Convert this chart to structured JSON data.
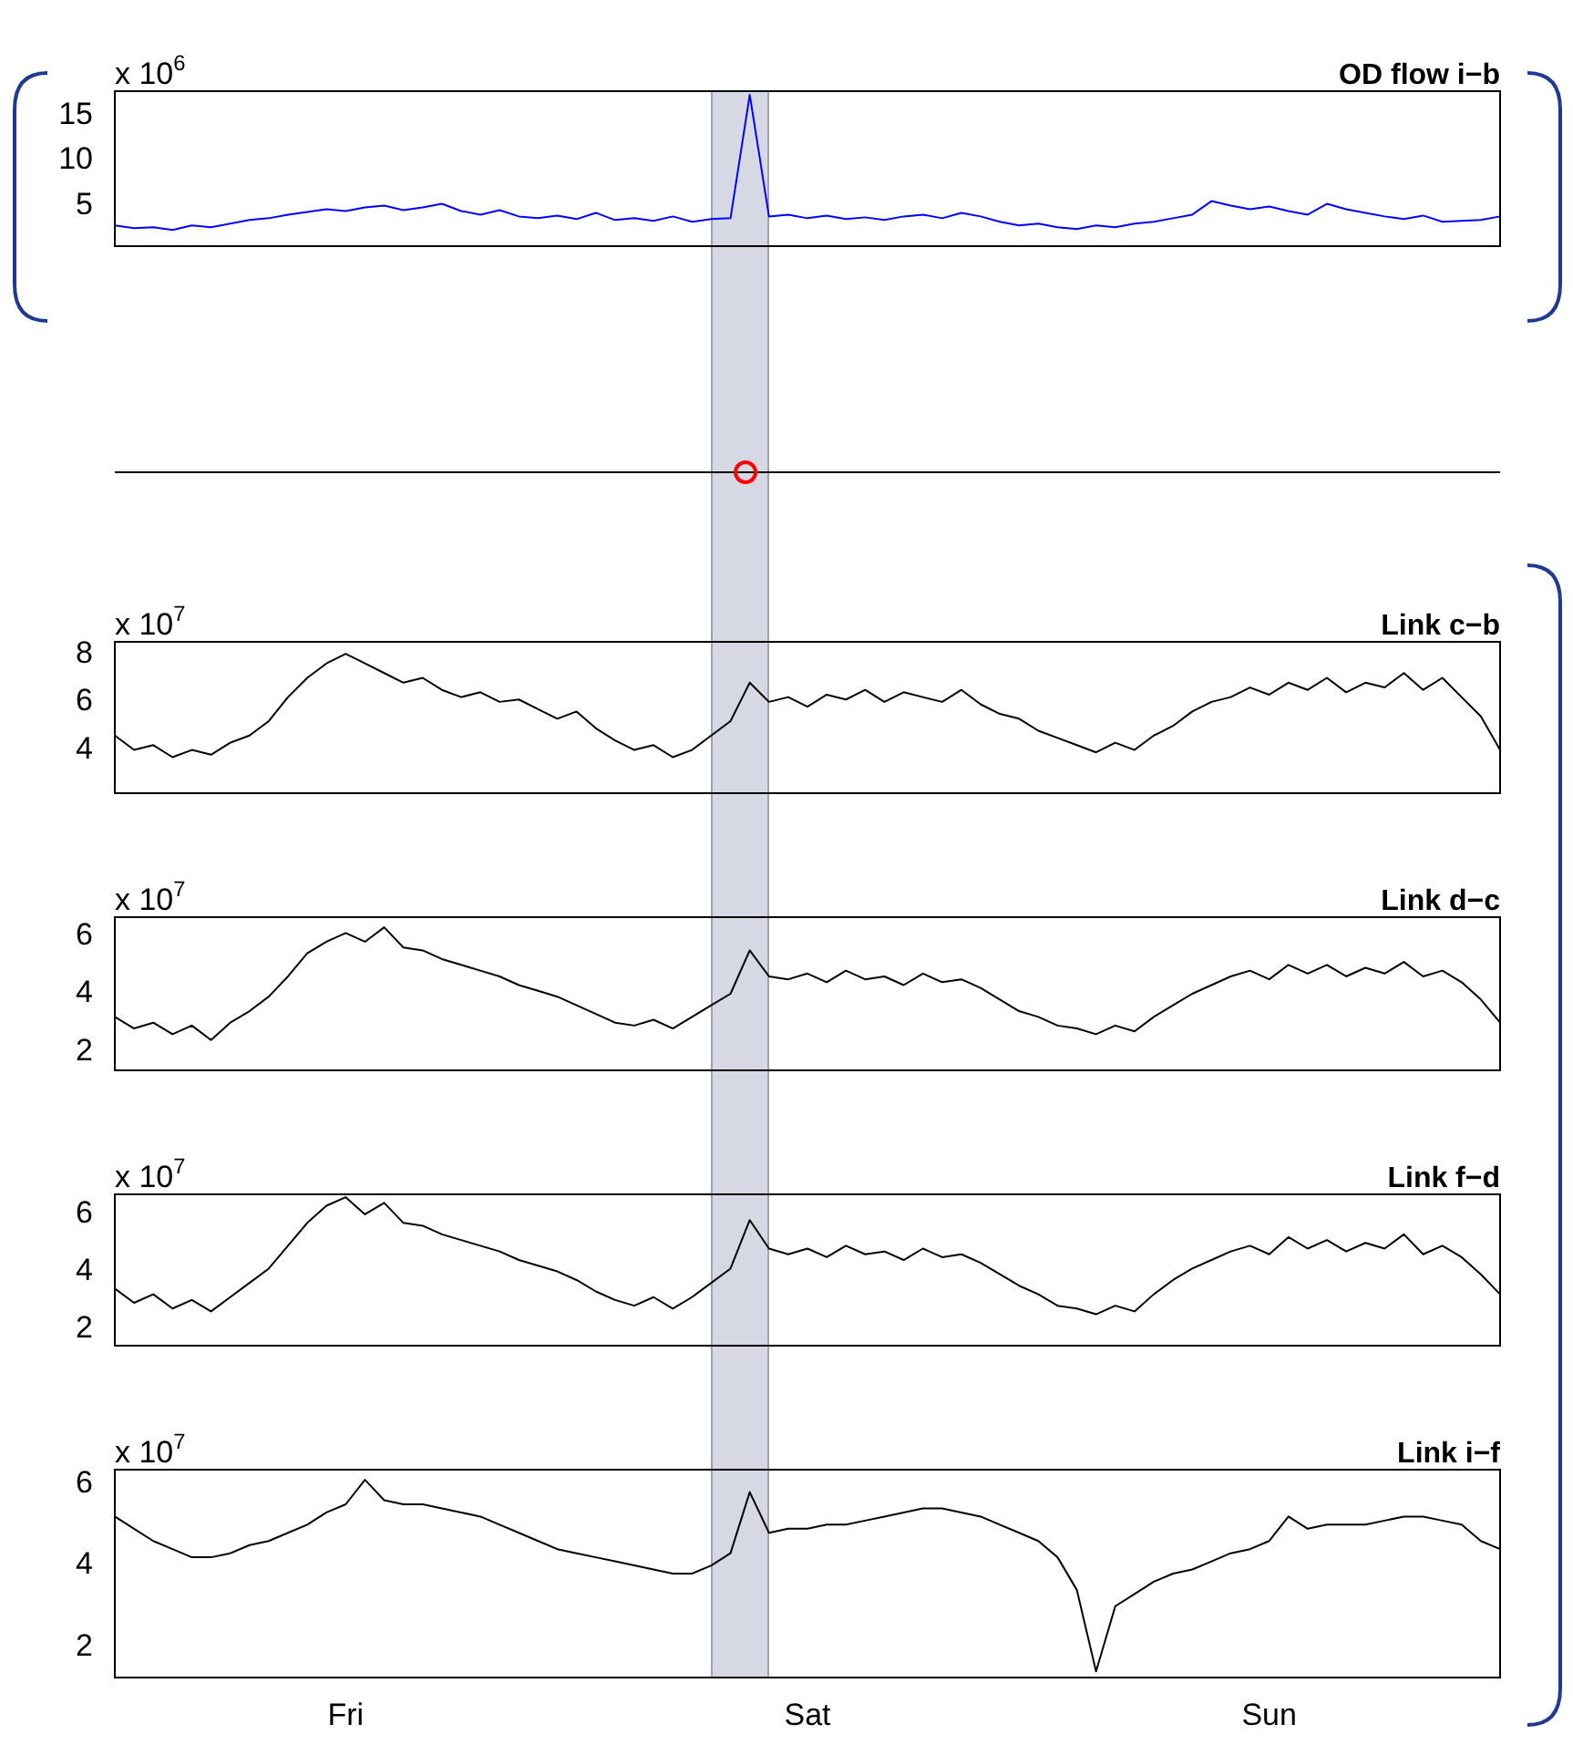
{
  "chart_data": [
    {
      "type": "line",
      "title": "OD flow i−b",
      "ylabel": "x 10$^{6}$",
      "color": "#0000ff",
      "categories": [
        null,
        null,
        null,
        null,
        null,
        null,
        null,
        null,
        null,
        null,
        null,
        null,
        null,
        null,
        null,
        null,
        null,
        null,
        null,
        null,
        null,
        null,
        null,
        null,
        null,
        null,
        null,
        null,
        null,
        null,
        null,
        null,
        null,
        null,
        null,
        null,
        null,
        null,
        null,
        null,
        null,
        null,
        null,
        null,
        null,
        null,
        null,
        null,
        null,
        null,
        null,
        null,
        null,
        null,
        null,
        null,
        null,
        null,
        null,
        null,
        null,
        null,
        null,
        null,
        null,
        null,
        null,
        null,
        null,
        null,
        null,
        null,
        null
      ],
      "values": [
        2.8,
        2.5,
        2.6,
        2.3,
        2.8,
        2.6,
        3.0,
        3.4,
        3.6,
        4.0,
        4.3,
        4.6,
        4.4,
        4.8,
        5.0,
        4.5,
        4.8,
        5.2,
        4.4,
        4.0,
        4.5,
        3.8,
        3.6,
        3.9,
        3.5,
        4.2,
        3.4,
        3.6,
        3.3,
        3.8,
        3.2,
        3.5,
        3.6,
        17.3,
        3.8,
        4.0,
        3.6,
        3.9,
        3.5,
        3.7,
        3.4,
        3.8,
        4.0,
        3.6,
        4.2,
        3.8,
        3.2,
        2.8,
        3.0,
        2.6,
        2.4,
        2.8,
        2.6,
        3.0,
        3.2,
        3.6,
        4.0,
        5.5,
        5.0,
        4.6,
        4.9,
        4.4,
        4.0,
        5.2,
        4.6,
        4.2,
        3.8,
        3.5,
        3.9,
        3.2,
        3.3,
        3.4,
        3.8
      ],
      "ylim": [
        0.5,
        17.7
      ],
      "yticks": [
        5,
        10,
        15
      ],
      "tick_labels": "y"
    },
    {
      "type": "line",
      "title": "Link c−b",
      "ylabel": "x 10$^{7}$",
      "color": "#000000",
      "categories": [
        null,
        null,
        null,
        null,
        null,
        null,
        null,
        null,
        null,
        null,
        null,
        null,
        null,
        null,
        null,
        null,
        null,
        null,
        null,
        null,
        null,
        null,
        null,
        null,
        null,
        null,
        null,
        null,
        null,
        null,
        null,
        null,
        null,
        null,
        null,
        null,
        null,
        null,
        null,
        null,
        null,
        null,
        null,
        null,
        null,
        null,
        null,
        null,
        null,
        null,
        null,
        null,
        null,
        null,
        null,
        null,
        null,
        null,
        null,
        null,
        null,
        null,
        null,
        null,
        null,
        null,
        null,
        null,
        null,
        null,
        null,
        null,
        null
      ],
      "values": [
        4.6,
        4.0,
        4.2,
        3.7,
        4.0,
        3.8,
        4.3,
        4.6,
        5.2,
        6.2,
        7.0,
        7.6,
        8.0,
        7.6,
        7.2,
        6.8,
        7.0,
        6.5,
        6.2,
        6.4,
        6.0,
        6.1,
        5.7,
        5.3,
        5.6,
        4.9,
        4.4,
        4.0,
        4.2,
        3.7,
        4.0,
        4.6,
        5.2,
        6.8,
        6.0,
        6.2,
        5.8,
        6.3,
        6.1,
        6.5,
        6.0,
        6.4,
        6.2,
        6.0,
        6.5,
        5.9,
        5.5,
        5.3,
        4.8,
        4.5,
        4.2,
        3.9,
        4.3,
        4.0,
        4.6,
        5.0,
        5.6,
        6.0,
        6.2,
        6.6,
        6.3,
        6.8,
        6.5,
        7.0,
        6.4,
        6.8,
        6.6,
        7.2,
        6.5,
        7.0,
        6.2,
        5.4,
        4.0
      ],
      "ylim": [
        2.2,
        8.5
      ],
      "yticks": [
        4,
        6,
        8
      ],
      "tick_labels": "y"
    },
    {
      "type": "line",
      "title": "Link d−c",
      "ylabel": "x 10$^{7}$",
      "color": "#000000",
      "categories": [
        null,
        null,
        null,
        null,
        null,
        null,
        null,
        null,
        null,
        null,
        null,
        null,
        null,
        null,
        null,
        null,
        null,
        null,
        null,
        null,
        null,
        null,
        null,
        null,
        null,
        null,
        null,
        null,
        null,
        null,
        null,
        null,
        null,
        null,
        null,
        null,
        null,
        null,
        null,
        null,
        null,
        null,
        null,
        null,
        null,
        null,
        null,
        null,
        null,
        null,
        null,
        null,
        null,
        null,
        null,
        null,
        null,
        null,
        null,
        null,
        null,
        null,
        null,
        null,
        null,
        null,
        null,
        null,
        null,
        null,
        null,
        null,
        null
      ],
      "values": [
        3.2,
        2.8,
        3.0,
        2.6,
        2.9,
        2.4,
        3.0,
        3.4,
        3.9,
        4.6,
        5.4,
        5.8,
        6.1,
        5.8,
        6.3,
        5.6,
        5.5,
        5.2,
        5.0,
        4.8,
        4.6,
        4.3,
        4.1,
        3.9,
        3.6,
        3.3,
        3.0,
        2.9,
        3.1,
        2.8,
        3.2,
        3.6,
        4.0,
        5.5,
        4.6,
        4.5,
        4.7,
        4.4,
        4.8,
        4.5,
        4.6,
        4.3,
        4.7,
        4.4,
        4.5,
        4.2,
        3.8,
        3.4,
        3.2,
        2.9,
        2.8,
        2.6,
        2.9,
        2.7,
        3.2,
        3.6,
        4.0,
        4.3,
        4.6,
        4.8,
        4.5,
        5.0,
        4.7,
        5.0,
        4.6,
        4.9,
        4.7,
        5.1,
        4.6,
        4.8,
        4.4,
        3.8,
        3.0
      ],
      "ylim": [
        1.35,
        6.65
      ],
      "yticks": [
        2,
        4,
        6
      ],
      "tick_labels": "y"
    },
    {
      "type": "line",
      "title": "Link f−d",
      "ylabel": "x 10$^{7}$",
      "color": "#000000",
      "categories": [
        null,
        null,
        null,
        null,
        null,
        null,
        null,
        null,
        null,
        null,
        null,
        null,
        null,
        null,
        null,
        null,
        null,
        null,
        null,
        null,
        null,
        null,
        null,
        null,
        null,
        null,
        null,
        null,
        null,
        null,
        null,
        null,
        null,
        null,
        null,
        null,
        null,
        null,
        null,
        null,
        null,
        null,
        null,
        null,
        null,
        null,
        null,
        null,
        null,
        null,
        null,
        null,
        null,
        null,
        null,
        null,
        null,
        null,
        null,
        null,
        null,
        null,
        null,
        null,
        null,
        null,
        null,
        null,
        null,
        null,
        null,
        null,
        null
      ],
      "values": [
        3.4,
        2.9,
        3.2,
        2.7,
        3.0,
        2.6,
        3.1,
        3.6,
        4.1,
        4.9,
        5.7,
        6.3,
        6.6,
        6.0,
        6.4,
        5.7,
        5.6,
        5.3,
        5.1,
        4.9,
        4.7,
        4.4,
        4.2,
        4.0,
        3.7,
        3.3,
        3.0,
        2.8,
        3.1,
        2.7,
        3.1,
        3.6,
        4.1,
        5.8,
        4.8,
        4.6,
        4.8,
        4.5,
        4.9,
        4.6,
        4.7,
        4.4,
        4.8,
        4.5,
        4.6,
        4.3,
        3.9,
        3.5,
        3.2,
        2.8,
        2.7,
        2.5,
        2.8,
        2.6,
        3.2,
        3.7,
        4.1,
        4.4,
        4.7,
        4.9,
        4.6,
        5.2,
        4.8,
        5.1,
        4.7,
        5.0,
        4.8,
        5.3,
        4.6,
        4.9,
        4.5,
        3.9,
        3.2
      ],
      "ylim": [
        1.4,
        6.7
      ],
      "yticks": [
        2,
        4,
        6
      ],
      "tick_labels": "y"
    },
    {
      "type": "line",
      "title": "Link i−f",
      "ylabel": "x 10$^{7}$",
      "color": "#000000",
      "categories": [
        null,
        null,
        null,
        null,
        null,
        null,
        null,
        null,
        null,
        null,
        null,
        null,
        "Fri",
        null,
        null,
        null,
        null,
        null,
        null,
        null,
        null,
        null,
        null,
        null,
        null,
        null,
        null,
        null,
        null,
        null,
        null,
        null,
        null,
        null,
        null,
        null,
        "Sat",
        null,
        null,
        null,
        null,
        null,
        null,
        null,
        null,
        null,
        null,
        null,
        null,
        null,
        null,
        null,
        null,
        null,
        null,
        null,
        null,
        null,
        null,
        null,
        "Sun",
        null,
        null,
        null,
        null,
        null,
        null,
        null,
        null,
        null,
        null,
        null,
        null
      ],
      "values": [
        5.2,
        4.9,
        4.6,
        4.4,
        4.2,
        4.2,
        4.3,
        4.5,
        4.6,
        4.8,
        5.0,
        5.3,
        5.5,
        6.1,
        5.6,
        5.5,
        5.5,
        5.4,
        5.3,
        5.2,
        5.0,
        4.8,
        4.6,
        4.4,
        4.3,
        4.2,
        4.1,
        4.0,
        3.9,
        3.8,
        3.8,
        4.0,
        4.3,
        5.8,
        4.8,
        4.9,
        4.9,
        5.0,
        5.0,
        5.1,
        5.2,
        5.3,
        5.4,
        5.4,
        5.3,
        5.2,
        5.0,
        4.8,
        4.6,
        4.2,
        3.4,
        1.4,
        3.0,
        3.3,
        3.6,
        3.8,
        3.9,
        4.1,
        4.3,
        4.4,
        4.6,
        5.2,
        4.9,
        5.0,
        5.0,
        5.0,
        5.1,
        5.2,
        5.2,
        5.1,
        5.0,
        4.6,
        4.4
      ],
      "ylim": [
        1.25,
        6.35
      ],
      "yticks": [
        2,
        4,
        6
      ]
    }
  ]
}
